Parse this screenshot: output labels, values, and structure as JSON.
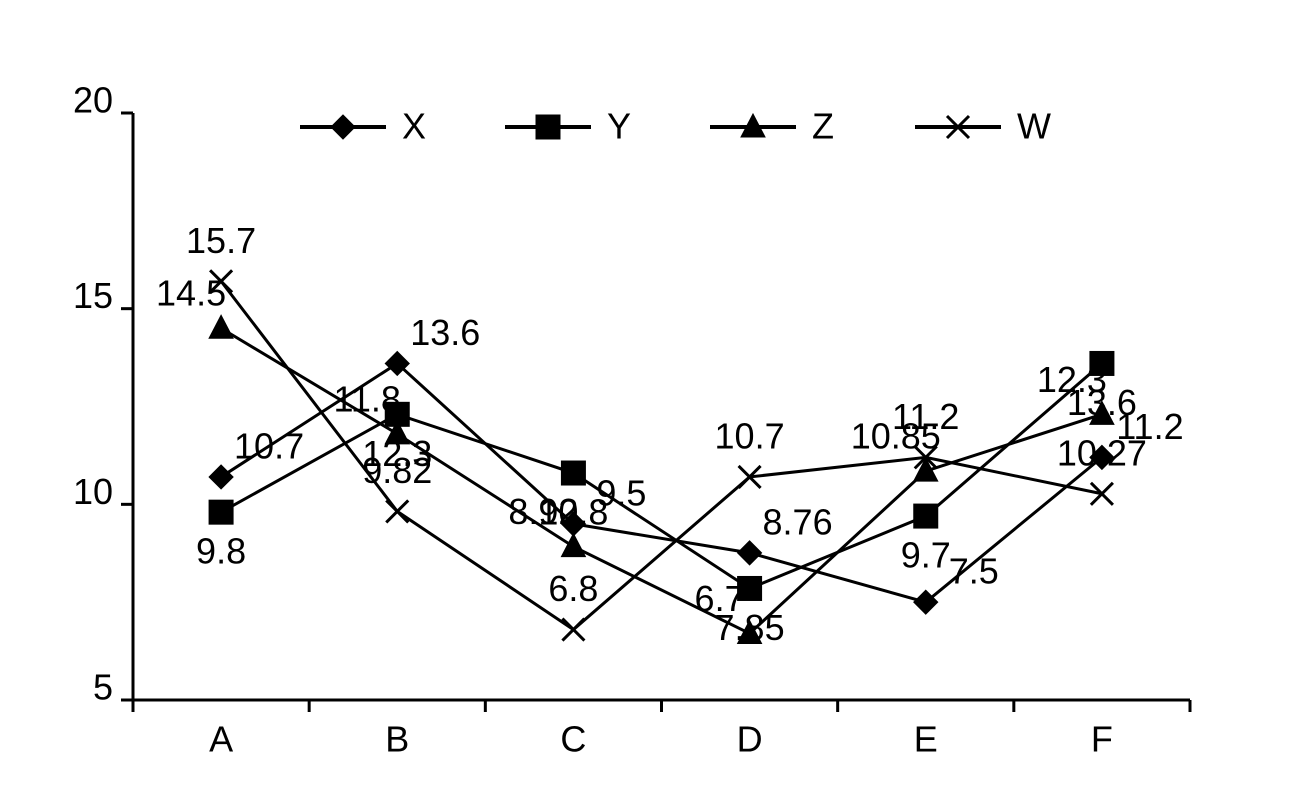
{
  "chart_data": {
    "type": "line",
    "categories": [
      "A",
      "B",
      "C",
      "D",
      "E",
      "F"
    ],
    "series": [
      {
        "name": "X",
        "color": "#000000",
        "marker": "diamond",
        "values": [
          10.7,
          13.6,
          9.5,
          8.76,
          7.5,
          11.2
        ]
      },
      {
        "name": "Y",
        "color": "#000000",
        "marker": "square",
        "values": [
          9.8,
          12.3,
          10.8,
          7.85,
          9.7,
          13.6
        ]
      },
      {
        "name": "Z",
        "color": "#000000",
        "marker": "triangle",
        "values": [
          14.5,
          11.8,
          8.92,
          6.7,
          10.85,
          12.3
        ]
      },
      {
        "name": "W",
        "color": "#000000",
        "marker": "cross",
        "values": [
          15.7,
          9.82,
          6.8,
          10.7,
          11.2,
          10.27
        ]
      }
    ],
    "ylim": [
      5,
      20
    ],
    "yticks": [
      5,
      10,
      15,
      20
    ],
    "grid": false,
    "legend": "top"
  }
}
